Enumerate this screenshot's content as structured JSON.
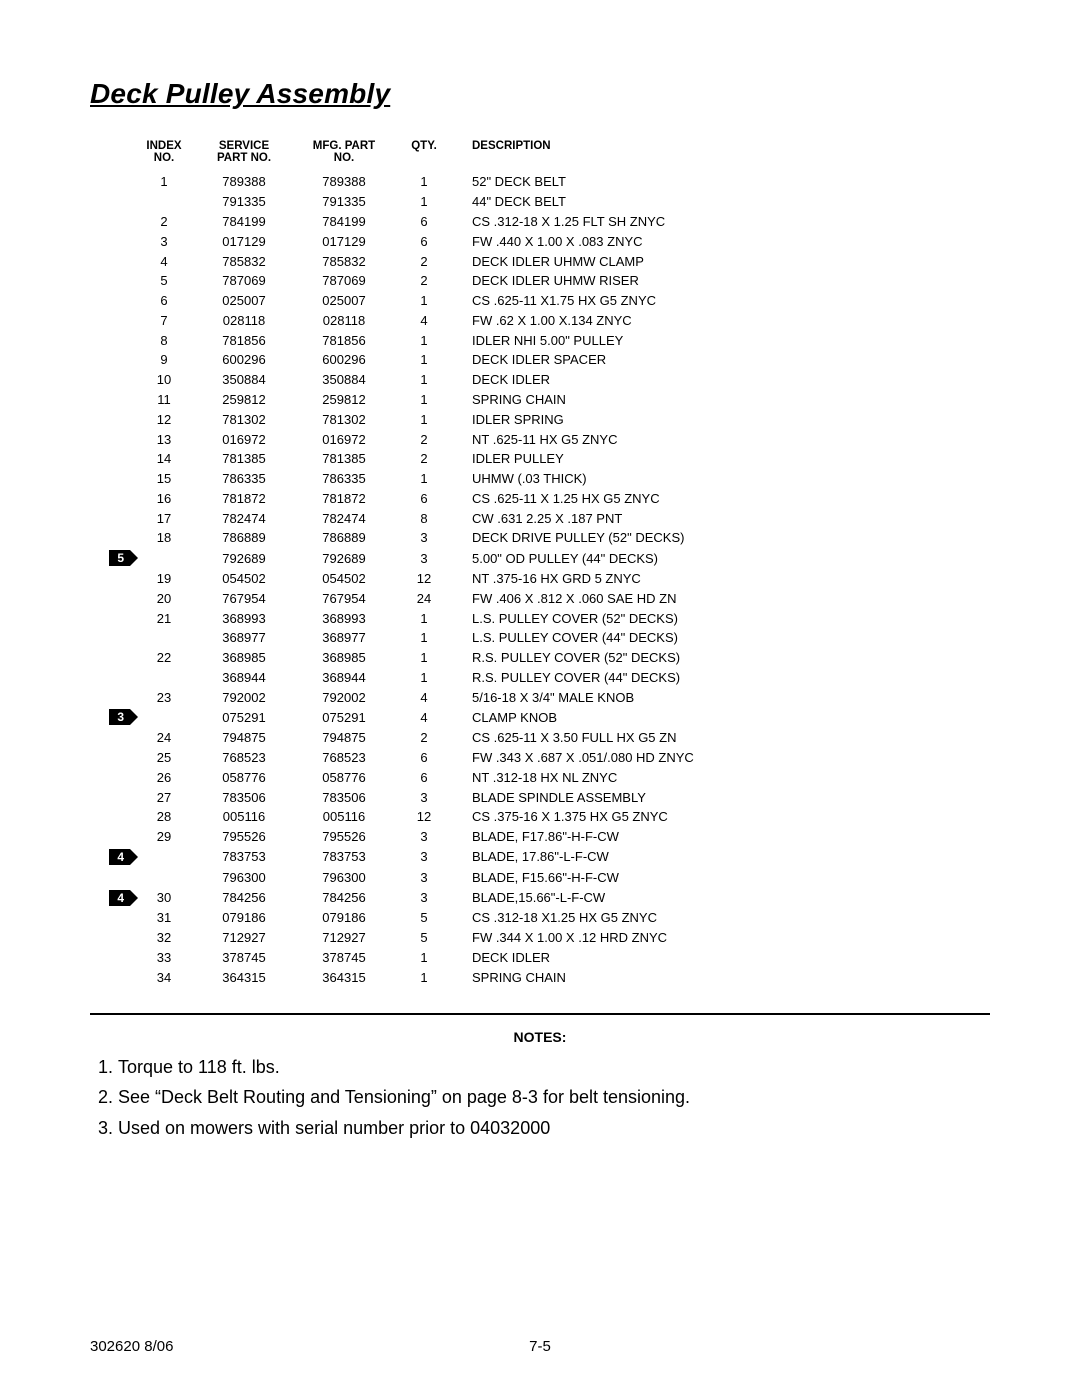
{
  "title": "Deck Pulley Assembly",
  "columns": {
    "index": "INDEX\nNO.",
    "service": "SERVICE\nPART NO.",
    "mfg": "MFG. PART\nNO.",
    "qty": "QTY.",
    "desc": "DESCRIPTION"
  },
  "rows": [
    {
      "marker": "",
      "idx": "1",
      "svc": "789388",
      "mfg": "789388",
      "qty": "1",
      "desc": "52\" DECK BELT"
    },
    {
      "marker": "",
      "idx": "",
      "svc": "791335",
      "mfg": "791335",
      "qty": "1",
      "desc": "44\" DECK BELT"
    },
    {
      "marker": "",
      "idx": "2",
      "svc": "784199",
      "mfg": "784199",
      "qty": "6",
      "desc": "CS .312-18 X 1.25 FLT SH ZNYC"
    },
    {
      "marker": "",
      "idx": "3",
      "svc": "017129",
      "mfg": "017129",
      "qty": "6",
      "desc": "FW .440 X 1.00 X .083 ZNYC"
    },
    {
      "marker": "",
      "idx": "4",
      "svc": "785832",
      "mfg": "785832",
      "qty": "2",
      "desc": "DECK IDLER UHMW CLAMP"
    },
    {
      "marker": "",
      "idx": "5",
      "svc": "787069",
      "mfg": "787069",
      "qty": "2",
      "desc": "DECK IDLER UHMW RISER"
    },
    {
      "marker": "",
      "idx": "6",
      "svc": "025007",
      "mfg": "025007",
      "qty": "1",
      "desc": "CS .625-11 X1.75 HX G5 ZNYC"
    },
    {
      "marker": "",
      "idx": "7",
      "svc": "028118",
      "mfg": "028118",
      "qty": "4",
      "desc": "FW .62 X 1.00 X.134 ZNYC"
    },
    {
      "marker": "",
      "idx": "8",
      "svc": "781856",
      "mfg": "781856",
      "qty": "1",
      "desc": "IDLER NHI 5.00\" PULLEY"
    },
    {
      "marker": "",
      "idx": "9",
      "svc": "600296",
      "mfg": "600296",
      "qty": "1",
      "desc": "DECK IDLER SPACER"
    },
    {
      "marker": "",
      "idx": "10",
      "svc": "350884",
      "mfg": "350884",
      "qty": "1",
      "desc": "DECK IDLER"
    },
    {
      "marker": "",
      "idx": "11",
      "svc": "259812",
      "mfg": "259812",
      "qty": "1",
      "desc": "SPRING CHAIN"
    },
    {
      "marker": "",
      "idx": "12",
      "svc": "781302",
      "mfg": "781302",
      "qty": "1",
      "desc": "IDLER SPRING"
    },
    {
      "marker": "",
      "idx": "13",
      "svc": "016972",
      "mfg": "016972",
      "qty": "2",
      "desc": "NT .625-11 HX G5 ZNYC"
    },
    {
      "marker": "",
      "idx": "14",
      "svc": "781385",
      "mfg": "781385",
      "qty": "2",
      "desc": "IDLER PULLEY"
    },
    {
      "marker": "",
      "idx": "15",
      "svc": "786335",
      "mfg": "786335",
      "qty": "1",
      "desc": "UHMW (.03 THICK)"
    },
    {
      "marker": "",
      "idx": "16",
      "svc": "781872",
      "mfg": "781872",
      "qty": "6",
      "desc": "CS .625-11 X 1.25 HX G5 ZNYC"
    },
    {
      "marker": "",
      "idx": "17",
      "svc": "782474",
      "mfg": "782474",
      "qty": "8",
      "desc": "CW .631 2.25 X .187 PNT"
    },
    {
      "marker": "",
      "idx": "18",
      "svc": "786889",
      "mfg": "786889",
      "qty": "3",
      "desc": "DECK DRIVE PULLEY (52\" DECKS)"
    },
    {
      "marker": "5",
      "idx": "",
      "svc": "792689",
      "mfg": "792689",
      "qty": "3",
      "desc": "5.00\" OD PULLEY (44\" DECKS)"
    },
    {
      "marker": "",
      "idx": "19",
      "svc": "054502",
      "mfg": "054502",
      "qty": "12",
      "desc": "NT .375-16 HX GRD 5 ZNYC"
    },
    {
      "marker": "",
      "idx": "20",
      "svc": "767954",
      "mfg": "767954",
      "qty": "24",
      "desc": "FW .406 X .812 X .060 SAE HD ZN"
    },
    {
      "marker": "",
      "idx": "21",
      "svc": "368993",
      "mfg": "368993",
      "qty": "1",
      "desc": "L.S. PULLEY COVER (52\" DECKS)"
    },
    {
      "marker": "",
      "idx": "",
      "svc": "368977",
      "mfg": "368977",
      "qty": "1",
      "desc": "L.S. PULLEY COVER (44\" DECKS)"
    },
    {
      "marker": "",
      "idx": "22",
      "svc": "368985",
      "mfg": "368985",
      "qty": "1",
      "desc": "R.S. PULLEY COVER (52\" DECKS)"
    },
    {
      "marker": "",
      "idx": "",
      "svc": "368944",
      "mfg": "368944",
      "qty": "1",
      "desc": "R.S. PULLEY COVER (44\" DECKS)"
    },
    {
      "marker": "",
      "idx": "23",
      "svc": "792002",
      "mfg": "792002",
      "qty": "4",
      "desc": "5/16-18 X 3/4\" MALE KNOB"
    },
    {
      "marker": "3",
      "idx": "",
      "svc": "075291",
      "mfg": "075291",
      "qty": "4",
      "desc": "CLAMP KNOB"
    },
    {
      "marker": "",
      "idx": "24",
      "svc": "794875",
      "mfg": "794875",
      "qty": "2",
      "desc": "CS .625-11 X 3.50 FULL HX G5 ZN"
    },
    {
      "marker": "",
      "idx": "25",
      "svc": "768523",
      "mfg": "768523",
      "qty": "6",
      "desc": "FW .343 X .687 X .051/.080 HD ZNYC"
    },
    {
      "marker": "",
      "idx": "26",
      "svc": "058776",
      "mfg": "058776",
      "qty": "6",
      "desc": "NT .312-18 HX NL ZNYC"
    },
    {
      "marker": "",
      "idx": "27",
      "svc": "783506",
      "mfg": "783506",
      "qty": "3",
      "desc": "BLADE SPINDLE ASSEMBLY"
    },
    {
      "marker": "",
      "idx": "28",
      "svc": "005116",
      "mfg": "005116",
      "qty": "12",
      "desc": "CS .375-16 X 1.375 HX G5 ZNYC"
    },
    {
      "marker": "",
      "idx": "29",
      "svc": "795526",
      "mfg": "795526",
      "qty": "3",
      "desc": "BLADE, F17.86\"-H-F-CW"
    },
    {
      "marker": "4",
      "idx": "",
      "svc": "783753",
      "mfg": "783753",
      "qty": "3",
      "desc": "BLADE, 17.86\"-L-F-CW"
    },
    {
      "marker": "",
      "idx": "",
      "svc": "796300",
      "mfg": "796300",
      "qty": "3",
      "desc": "BLADE, F15.66\"-H-F-CW"
    },
    {
      "marker": "4",
      "idx": "30",
      "svc": "784256",
      "mfg": "784256",
      "qty": "3",
      "desc": "BLADE,15.66\"-L-F-CW"
    },
    {
      "marker": "",
      "idx": "31",
      "svc": "079186",
      "mfg": "079186",
      "qty": "5",
      "desc": "CS .312-18 X1.25 HX G5 ZNYC"
    },
    {
      "marker": "",
      "idx": "32",
      "svc": "712927",
      "mfg": "712927",
      "qty": "5",
      "desc": "FW .344 X 1.00 X .12 HRD ZNYC"
    },
    {
      "marker": "",
      "idx": "33",
      "svc": "378745",
      "mfg": "378745",
      "qty": "1",
      "desc": "DECK IDLER"
    },
    {
      "marker": "",
      "idx": "34",
      "svc": "364315",
      "mfg": "364315",
      "qty": "1",
      "desc": "SPRING CHAIN"
    }
  ],
  "notes_label": "NOTES:",
  "notes": [
    "Torque to 118 ft. lbs.",
    "See “Deck Belt Routing and Tensioning” on page 8-3 for belt tensioning.",
    "Used on mowers with serial number prior to 04032000"
  ],
  "footer_left": "302620 8/06",
  "footer_center": "7-5"
}
